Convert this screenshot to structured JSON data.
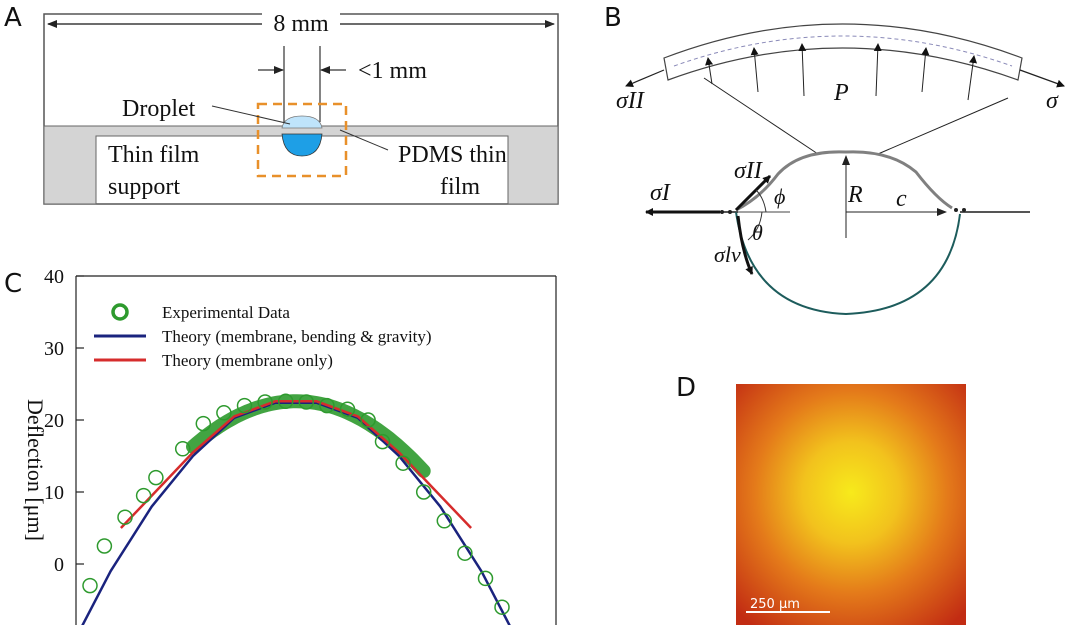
{
  "panel_a": {
    "panel_letter": "A",
    "width_label": "8 mm",
    "gap_label": "<1 mm",
    "droplet_label": "Droplet",
    "support_label_line1": "Thin film",
    "support_label_line2": "support",
    "film_label_line1": "PDMS thin",
    "film_label_line2": "film",
    "droplet_color": "#1e9fe6",
    "support_color": "#d4d4d4",
    "highlight_color": "#e8902a"
  },
  "panel_b": {
    "panel_letter": "B",
    "sigma_II": "σII",
    "sigma_II_right": "σ",
    "pressure": "P",
    "sigma_I": "σI",
    "sigma_II_tangent": "σII",
    "phi": "ϕ",
    "theta": "θ",
    "radius": "R",
    "chord": "c",
    "sigma_lv": "σlv",
    "upper_arc_color": "#808080",
    "lower_arc_color": "#1d5c5c"
  },
  "panel_c": {
    "panel_letter": "C",
    "ylabel": "Deflection [μm]",
    "legend": {
      "experimental": "Experimental Data",
      "theory_full": "Theory (membrane, bending & gravity)",
      "theory_membrane": "Theory (membrane only)"
    },
    "colors": {
      "experimental": "#2e9a2e",
      "theory_full": "#1a237e",
      "theory_membrane": "#d62c2c"
    }
  },
  "panel_d": {
    "panel_letter": "D",
    "scale_label": "250 µm",
    "center_color": "#f7e81a",
    "edge_color": "#c62f14"
  },
  "chart_data": {
    "type": "scatter",
    "title": "",
    "xlabel": "",
    "ylabel": "Deflection [μm]",
    "ylim": [
      -8,
      40
    ],
    "yticks": [
      0,
      10,
      20,
      30,
      40
    ],
    "grid": false,
    "legend_position": "top-left",
    "series": [
      {
        "name": "Experimental Data",
        "style": "open-circles",
        "x": [
          -1.0,
          -0.93,
          -0.83,
          -0.74,
          -0.68,
          -0.55,
          -0.45,
          -0.35,
          -0.25,
          -0.15,
          -0.05,
          0.05,
          0.15,
          0.25,
          0.35,
          0.42,
          0.52,
          0.62,
          0.72,
          0.82,
          0.92,
          1.0
        ],
        "values": [
          -3,
          2.5,
          6.5,
          9.5,
          12,
          16,
          19.5,
          21,
          22,
          22.5,
          22.6,
          22.5,
          22,
          21.5,
          20,
          17,
          14,
          10,
          6,
          1.5,
          -2,
          -6
        ]
      },
      {
        "name": "Theory (membrane, bending & gravity)",
        "style": "line",
        "x": [
          -1.1,
          -0.9,
          -0.7,
          -0.5,
          -0.3,
          -0.1,
          0.1,
          0.3,
          0.5,
          0.7,
          0.9,
          1.1
        ],
        "values": [
          -12,
          -1,
          8,
          15,
          20.3,
          22.4,
          22.4,
          20.3,
          15,
          8,
          -1,
          -12
        ]
      },
      {
        "name": "Theory (membrane only)",
        "style": "line",
        "x": [
          -0.85,
          -0.7,
          -0.5,
          -0.3,
          -0.1,
          0.1,
          0.3,
          0.5,
          0.7,
          0.85
        ],
        "values": [
          5,
          9.5,
          15.5,
          20.5,
          22.6,
          22.6,
          20.5,
          15.5,
          9.5,
          5
        ]
      }
    ]
  }
}
